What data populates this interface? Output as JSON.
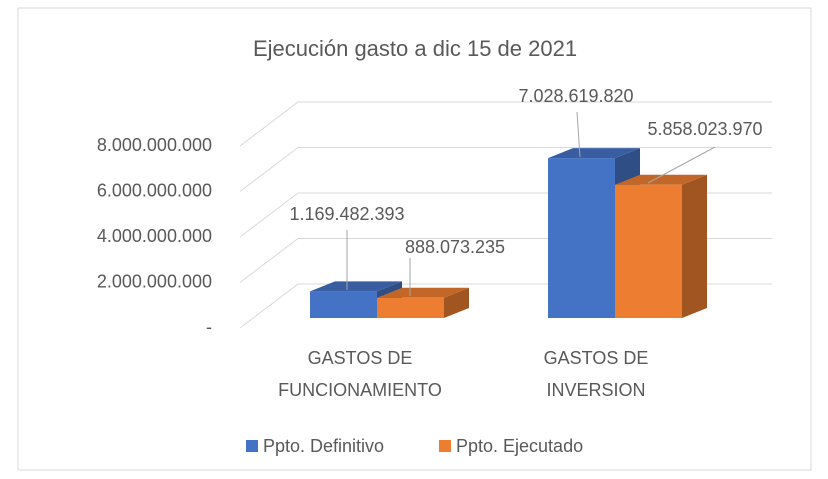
{
  "chart_data": {
    "type": "bar3d",
    "title": "Ejecución gasto a dic 15 de 2021",
    "categories": [
      "GASTOS DE FUNCIONAMIENTO",
      "GASTOS DE INVERSION"
    ],
    "series": [
      {
        "name": "Ppto. Definitivo",
        "color": "#4472c4",
        "values": [
          1169482393,
          7028619820
        ],
        "value_labels": [
          "1.169.482.393",
          "7.028.619.820"
        ]
      },
      {
        "name": "Ppto. Ejecutado",
        "color": "#ed7d31",
        "values": [
          888073235,
          5858023970
        ],
        "value_labels": [
          "888.073.235",
          "5.858.023.970"
        ]
      }
    ],
    "ylim": [
      0,
      8000000000
    ],
    "yticks": [
      {
        "value": 0,
        "label": "-"
      },
      {
        "value": 2000000000,
        "label": "2.000.000.000"
      },
      {
        "value": 4000000000,
        "label": "4.000.000.000"
      },
      {
        "value": 6000000000,
        "label": "6.000.000.000"
      },
      {
        "value": 8000000000,
        "label": "8.000.000.000"
      }
    ],
    "grid": true,
    "legend": "bottom"
  }
}
